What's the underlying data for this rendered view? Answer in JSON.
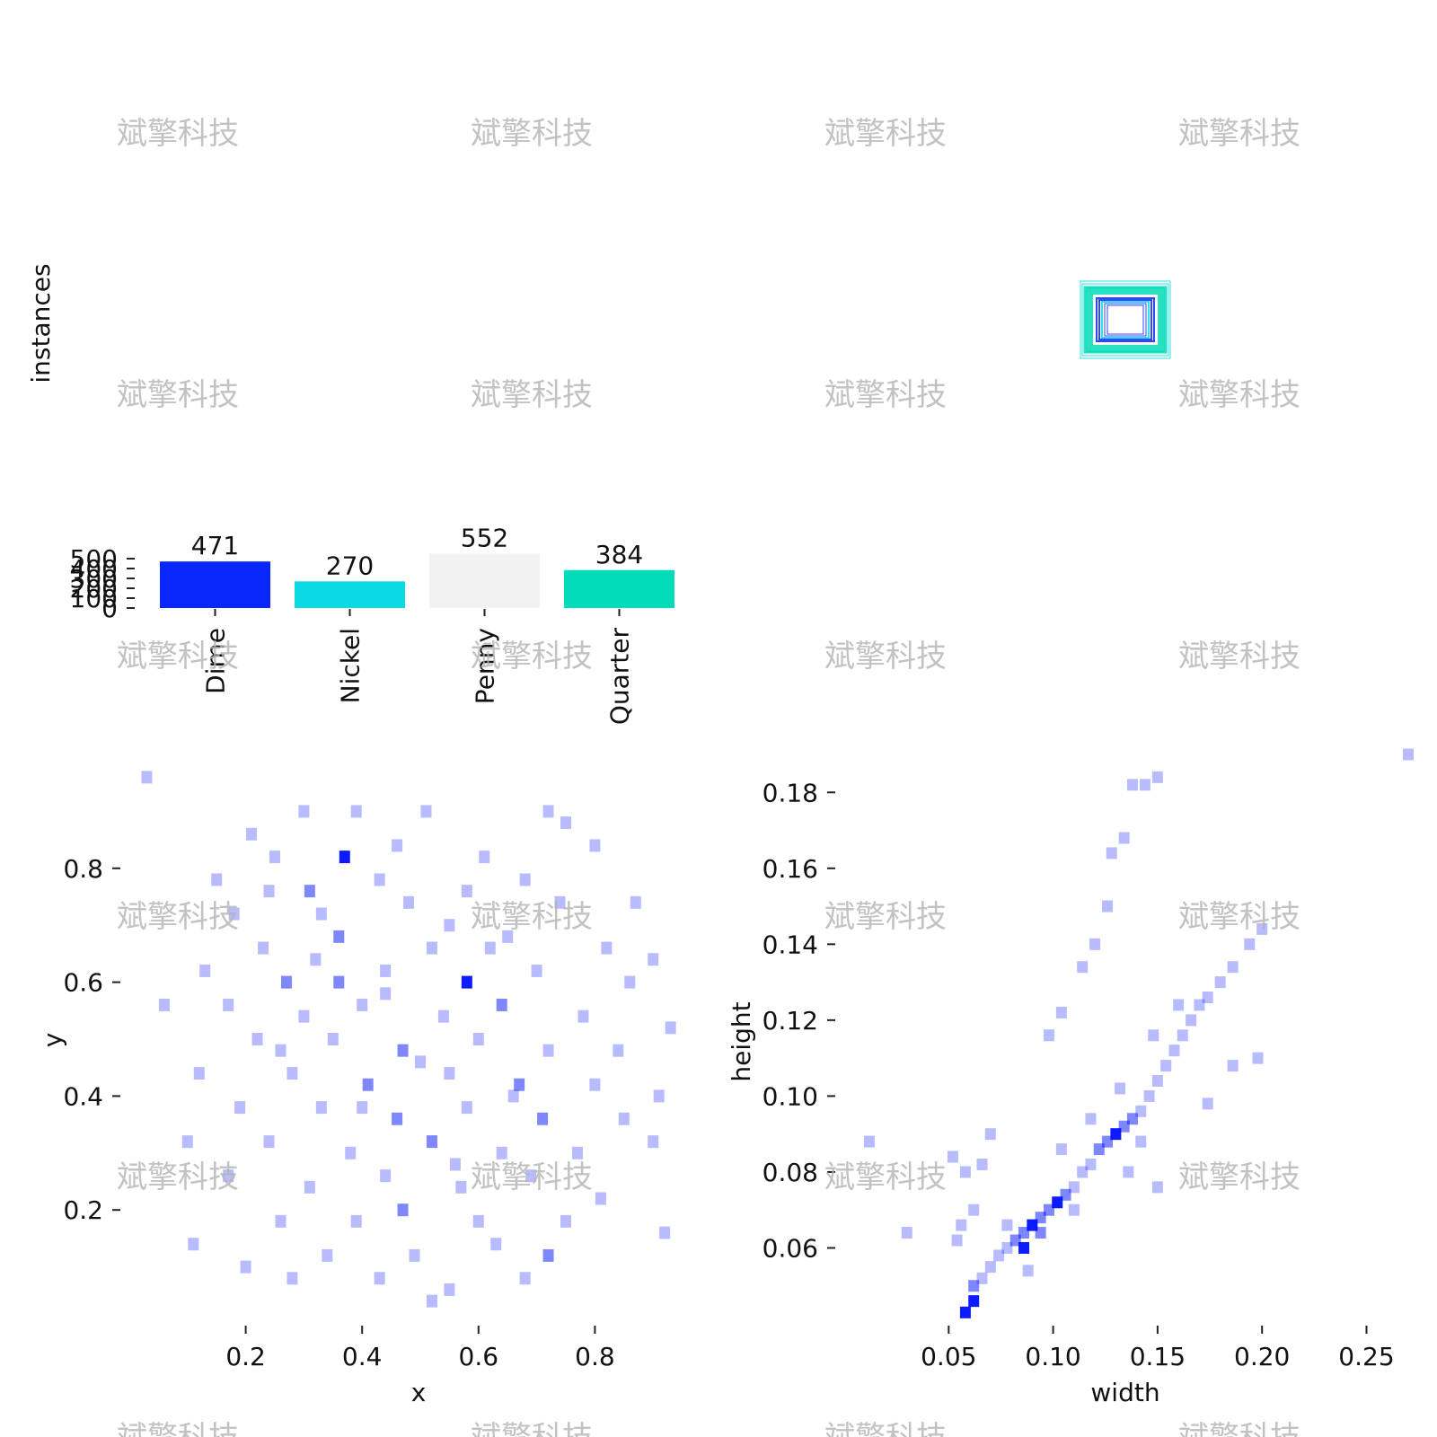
{
  "watermark": "斌擎科技",
  "chart_data": [
    {
      "type": "bar",
      "categories": [
        "Dime",
        "Nickel",
        "Penny",
        "Quarter"
      ],
      "values": [
        471,
        270,
        552,
        384
      ],
      "colors": [
        "#0a27fb",
        "#0bdae5",
        "#f2f2f2",
        "#02dcb8"
      ],
      "xlabel": "",
      "ylabel": "instances",
      "ylim": [
        0,
        552
      ],
      "yticks": [
        0,
        100,
        200,
        300,
        400,
        500
      ],
      "grid": false
    },
    {
      "type": "diagram",
      "description_visible": "nested label-box rectangles centered",
      "colors": [
        "#0a27fb",
        "#0bdae5",
        "#02dcb8"
      ]
    },
    {
      "type": "heatmap",
      "xlabel": "x",
      "ylabel": "y",
      "xlim": [
        0.0,
        1.0
      ],
      "ylim": [
        0.0,
        1.0
      ],
      "xticks": [
        "0.2",
        "0.4",
        "0.6",
        "0.8"
      ],
      "yticks": [
        "0.2",
        "0.4",
        "0.6",
        "0.8"
      ],
      "color": "#0010ff",
      "cells": [
        [
          0.03,
          0.96,
          1
        ],
        [
          0.3,
          0.9,
          1
        ],
        [
          0.39,
          0.9,
          1
        ],
        [
          0.51,
          0.9,
          1
        ],
        [
          0.72,
          0.9,
          1
        ],
        [
          0.75,
          0.88,
          1
        ],
        [
          0.21,
          0.86,
          1
        ],
        [
          0.37,
          0.82,
          3
        ],
        [
          0.25,
          0.82,
          1
        ],
        [
          0.46,
          0.84,
          1
        ],
        [
          0.61,
          0.82,
          1
        ],
        [
          0.8,
          0.84,
          1
        ],
        [
          0.15,
          0.78,
          1
        ],
        [
          0.24,
          0.76,
          1
        ],
        [
          0.31,
          0.76,
          2
        ],
        [
          0.43,
          0.78,
          1
        ],
        [
          0.58,
          0.76,
          1
        ],
        [
          0.68,
          0.78,
          1
        ],
        [
          0.18,
          0.72,
          1
        ],
        [
          0.33,
          0.72,
          1
        ],
        [
          0.48,
          0.74,
          1
        ],
        [
          0.55,
          0.7,
          1
        ],
        [
          0.74,
          0.74,
          1
        ],
        [
          0.87,
          0.74,
          1
        ],
        [
          0.23,
          0.66,
          1
        ],
        [
          0.36,
          0.68,
          2
        ],
        [
          0.52,
          0.66,
          1
        ],
        [
          0.65,
          0.68,
          1
        ],
        [
          0.82,
          0.66,
          1
        ],
        [
          0.9,
          0.64,
          1
        ],
        [
          0.13,
          0.62,
          1
        ],
        [
          0.27,
          0.6,
          2
        ],
        [
          0.36,
          0.6,
          2
        ],
        [
          0.44,
          0.62,
          1
        ],
        [
          0.58,
          0.6,
          3
        ],
        [
          0.7,
          0.62,
          1
        ],
        [
          0.86,
          0.6,
          1
        ],
        [
          0.06,
          0.56,
          1
        ],
        [
          0.17,
          0.56,
          1
        ],
        [
          0.3,
          0.54,
          1
        ],
        [
          0.4,
          0.56,
          1
        ],
        [
          0.54,
          0.54,
          1
        ],
        [
          0.64,
          0.56,
          2
        ],
        [
          0.78,
          0.54,
          1
        ],
        [
          0.93,
          0.52,
          1
        ],
        [
          0.22,
          0.5,
          1
        ],
        [
          0.35,
          0.5,
          1
        ],
        [
          0.47,
          0.48,
          2
        ],
        [
          0.6,
          0.5,
          1
        ],
        [
          0.72,
          0.48,
          1
        ],
        [
          0.84,
          0.48,
          1
        ],
        [
          0.12,
          0.44,
          1
        ],
        [
          0.28,
          0.44,
          1
        ],
        [
          0.41,
          0.42,
          2
        ],
        [
          0.55,
          0.44,
          1
        ],
        [
          0.67,
          0.42,
          2
        ],
        [
          0.8,
          0.42,
          1
        ],
        [
          0.91,
          0.4,
          1
        ],
        [
          0.19,
          0.38,
          1
        ],
        [
          0.33,
          0.38,
          1
        ],
        [
          0.46,
          0.36,
          2
        ],
        [
          0.58,
          0.38,
          1
        ],
        [
          0.71,
          0.36,
          2
        ],
        [
          0.85,
          0.36,
          1
        ],
        [
          0.1,
          0.32,
          1
        ],
        [
          0.24,
          0.32,
          1
        ],
        [
          0.38,
          0.3,
          1
        ],
        [
          0.52,
          0.32,
          2
        ],
        [
          0.64,
          0.3,
          1
        ],
        [
          0.77,
          0.3,
          1
        ],
        [
          0.9,
          0.32,
          1
        ],
        [
          0.17,
          0.26,
          1
        ],
        [
          0.31,
          0.24,
          1
        ],
        [
          0.44,
          0.26,
          1
        ],
        [
          0.57,
          0.24,
          1
        ],
        [
          0.69,
          0.26,
          1
        ],
        [
          0.81,
          0.22,
          1
        ],
        [
          0.26,
          0.18,
          1
        ],
        [
          0.39,
          0.18,
          1
        ],
        [
          0.47,
          0.2,
          2
        ],
        [
          0.6,
          0.18,
          1
        ],
        [
          0.75,
          0.18,
          1
        ],
        [
          0.92,
          0.16,
          1
        ],
        [
          0.11,
          0.14,
          1
        ],
        [
          0.34,
          0.12,
          1
        ],
        [
          0.49,
          0.12,
          1
        ],
        [
          0.63,
          0.14,
          1
        ],
        [
          0.72,
          0.12,
          2
        ],
        [
          0.2,
          0.1,
          1
        ],
        [
          0.28,
          0.08,
          1
        ],
        [
          0.43,
          0.08,
          1
        ],
        [
          0.55,
          0.06,
          1
        ],
        [
          0.68,
          0.08,
          1
        ],
        [
          0.52,
          0.04,
          1
        ],
        [
          0.44,
          0.58,
          1
        ],
        [
          0.5,
          0.46,
          1
        ],
        [
          0.62,
          0.66,
          1
        ],
        [
          0.4,
          0.38,
          1
        ],
        [
          0.56,
          0.28,
          1
        ],
        [
          0.32,
          0.64,
          1
        ],
        [
          0.66,
          0.4,
          1
        ],
        [
          0.26,
          0.48,
          1
        ]
      ]
    },
    {
      "type": "heatmap",
      "xlabel": "width",
      "ylabel": "height",
      "xlim": [
        0.0,
        0.27
      ],
      "ylim": [
        0.04,
        0.19
      ],
      "xticks": [
        "0.05",
        "0.10",
        "0.15",
        "0.20",
        "0.25"
      ],
      "yticks": [
        "0.06",
        "0.08",
        "0.10",
        "0.12",
        "0.14",
        "0.16",
        "0.18"
      ],
      "color": "#0010ff",
      "cells": [
        [
          0.058,
          0.043,
          3
        ],
        [
          0.062,
          0.046,
          3
        ],
        [
          0.062,
          0.05,
          2
        ],
        [
          0.066,
          0.052,
          1
        ],
        [
          0.07,
          0.055,
          1
        ],
        [
          0.074,
          0.058,
          1
        ],
        [
          0.078,
          0.06,
          1
        ],
        [
          0.082,
          0.062,
          2
        ],
        [
          0.086,
          0.064,
          2
        ],
        [
          0.09,
          0.066,
          3
        ],
        [
          0.086,
          0.06,
          3
        ],
        [
          0.094,
          0.064,
          2
        ],
        [
          0.094,
          0.068,
          2
        ],
        [
          0.098,
          0.07,
          2
        ],
        [
          0.102,
          0.072,
          3
        ],
        [
          0.106,
          0.074,
          2
        ],
        [
          0.11,
          0.076,
          1
        ],
        [
          0.114,
          0.08,
          1
        ],
        [
          0.118,
          0.082,
          1
        ],
        [
          0.122,
          0.086,
          2
        ],
        [
          0.126,
          0.088,
          2
        ],
        [
          0.13,
          0.09,
          3
        ],
        [
          0.134,
          0.092,
          2
        ],
        [
          0.138,
          0.094,
          2
        ],
        [
          0.142,
          0.096,
          1
        ],
        [
          0.146,
          0.1,
          1
        ],
        [
          0.15,
          0.104,
          1
        ],
        [
          0.154,
          0.108,
          1
        ],
        [
          0.158,
          0.112,
          1
        ],
        [
          0.162,
          0.116,
          1
        ],
        [
          0.166,
          0.12,
          1
        ],
        [
          0.17,
          0.124,
          1
        ],
        [
          0.174,
          0.126,
          1
        ],
        [
          0.18,
          0.13,
          1
        ],
        [
          0.186,
          0.134,
          1
        ],
        [
          0.194,
          0.14,
          1
        ],
        [
          0.2,
          0.144,
          1
        ],
        [
          0.056,
          0.066,
          1
        ],
        [
          0.054,
          0.062,
          1
        ],
        [
          0.062,
          0.07,
          1
        ],
        [
          0.052,
          0.084,
          1
        ],
        [
          0.058,
          0.08,
          1
        ],
        [
          0.066,
          0.082,
          1
        ],
        [
          0.098,
          0.116,
          1
        ],
        [
          0.104,
          0.122,
          1
        ],
        [
          0.114,
          0.134,
          1
        ],
        [
          0.12,
          0.14,
          1
        ],
        [
          0.126,
          0.15,
          1
        ],
        [
          0.128,
          0.164,
          1
        ],
        [
          0.134,
          0.168,
          1
        ],
        [
          0.138,
          0.182,
          1
        ],
        [
          0.144,
          0.182,
          1
        ],
        [
          0.15,
          0.184,
          1
        ],
        [
          0.142,
          0.088,
          1
        ],
        [
          0.15,
          0.076,
          1
        ],
        [
          0.118,
          0.094,
          1
        ],
        [
          0.104,
          0.086,
          1
        ],
        [
          0.174,
          0.098,
          1
        ],
        [
          0.186,
          0.108,
          1
        ],
        [
          0.198,
          0.11,
          1
        ],
        [
          0.03,
          0.064,
          1
        ],
        [
          0.012,
          0.088,
          1
        ],
        [
          0.07,
          0.09,
          1
        ],
        [
          0.088,
          0.054,
          1
        ],
        [
          0.16,
          0.124,
          1
        ],
        [
          0.132,
          0.102,
          1
        ],
        [
          0.148,
          0.116,
          1
        ],
        [
          0.11,
          0.07,
          1
        ],
        [
          0.078,
          0.066,
          1
        ],
        [
          0.136,
          0.08,
          1
        ],
        [
          0.27,
          0.19,
          1
        ]
      ]
    }
  ]
}
